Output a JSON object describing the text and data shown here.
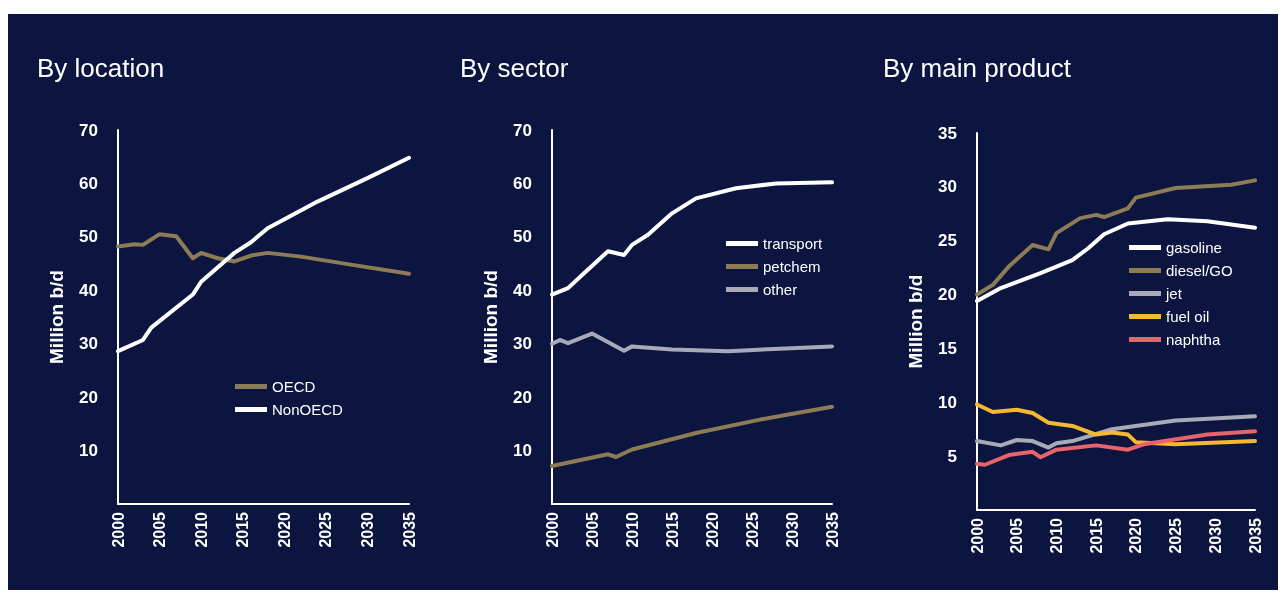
{
  "chart_data": [
    {
      "type": "line",
      "title": "By location",
      "ylabel": "Million b/d",
      "xlim": [
        2000,
        2035
      ],
      "xticks": [
        2000,
        2005,
        2010,
        2015,
        2020,
        2025,
        2030,
        2035
      ],
      "ylim": [
        0,
        70
      ],
      "yticks": [
        10,
        20,
        30,
        40,
        50,
        60,
        70
      ],
      "grid": false,
      "legend": "bottom right",
      "marker": "none",
      "line_style": "solid",
      "series": [
        {
          "name": "OECD",
          "color": "#8c7b55",
          "x": [
            2000,
            2002,
            2003,
            2005,
            2007,
            2009,
            2010,
            2012,
            2014,
            2016,
            2018,
            2022,
            2028,
            2035
          ],
          "values": [
            48.2,
            48.6,
            48.5,
            50.5,
            50.1,
            46,
            47,
            46,
            45.4,
            46.5,
            47,
            46.3,
            44.8,
            43.1
          ]
        },
        {
          "name": "NonOECD",
          "color": "#ffffff",
          "x": [
            2000,
            2003,
            2004,
            2009,
            2010,
            2014,
            2016,
            2018,
            2024,
            2030,
            2035
          ],
          "values": [
            28.6,
            30.7,
            33,
            39.2,
            41.6,
            47,
            49,
            51.6,
            56.6,
            61,
            64.8
          ]
        }
      ]
    },
    {
      "type": "line",
      "title": "By sector",
      "ylabel": "Million b/d",
      "xlim": [
        2000,
        2035
      ],
      "xticks": [
        2000,
        2005,
        2010,
        2015,
        2020,
        2025,
        2030,
        2035
      ],
      "ylim": [
        0,
        70
      ],
      "yticks": [
        10,
        20,
        30,
        40,
        50,
        60,
        70
      ],
      "grid": false,
      "legend": "right",
      "marker": "none",
      "line_style": "solid",
      "series": [
        {
          "name": "transport",
          "color": "#ffffff",
          "x": [
            2000,
            2002,
            2004,
            2007,
            2009,
            2010,
            2012,
            2015,
            2018,
            2023,
            2028,
            2035
          ],
          "values": [
            39.2,
            40.4,
            43.2,
            47.3,
            46.6,
            48.5,
            50.4,
            54.4,
            57.2,
            59.1,
            60,
            60.2
          ]
        },
        {
          "name": "petchem",
          "color": "#8c7b55",
          "x": [
            2000,
            2007,
            2008,
            2010,
            2018,
            2026,
            2035
          ],
          "values": [
            7.1,
            9.3,
            8.8,
            10.2,
            13.3,
            15.8,
            18.2
          ]
        },
        {
          "name": "other",
          "color": "#a9aab8",
          "x": [
            2000,
            2001,
            2002,
            2005,
            2009,
            2010,
            2015,
            2022,
            2035
          ],
          "values": [
            30,
            30.7,
            30.1,
            31.9,
            28.7,
            29.5,
            28.9,
            28.6,
            29.5
          ]
        }
      ]
    },
    {
      "type": "line",
      "title": "By main product",
      "ylabel": "Million b/d",
      "xlim": [
        2000,
        2035
      ],
      "xticks": [
        2000,
        2005,
        2010,
        2015,
        2020,
        2025,
        2030,
        2035
      ],
      "ylim": [
        0,
        35
      ],
      "yticks": [
        5,
        10,
        15,
        20,
        25,
        30,
        35
      ],
      "grid": false,
      "legend": "right",
      "marker": "none",
      "line_style": "solid",
      "series": [
        {
          "name": "gasoline",
          "color": "#ffffff",
          "x": [
            2000,
            2003,
            2008,
            2010,
            2012,
            2014,
            2016,
            2019,
            2024,
            2029,
            2035
          ],
          "values": [
            19.4,
            20.6,
            22,
            22.6,
            23.2,
            24.3,
            25.6,
            26.6,
            27,
            26.8,
            26.2
          ]
        },
        {
          "name": "diesel/GO",
          "color": "#8c7b55",
          "x": [
            2000,
            2002,
            2004,
            2007,
            2009,
            2010,
            2013,
            2015,
            2016,
            2019,
            2020,
            2025,
            2032,
            2035
          ],
          "values": [
            20,
            20.9,
            22.6,
            24.6,
            24.2,
            25.7,
            27.1,
            27.4,
            27.2,
            28,
            29,
            29.9,
            30.2,
            30.6
          ]
        },
        {
          "name": "jet",
          "color": "#a9aab8",
          "x": [
            2000,
            2003,
            2005,
            2007,
            2009,
            2010,
            2012,
            2017,
            2025,
            2035
          ],
          "values": [
            6.4,
            6,
            6.5,
            6.4,
            5.8,
            6.2,
            6.4,
            7.5,
            8.3,
            8.7
          ]
        },
        {
          "name": "fuel oil",
          "color": "#f5b82e",
          "x": [
            2000,
            2002,
            2005,
            2007,
            2009,
            2012,
            2015,
            2017,
            2019,
            2020,
            2025,
            2035
          ],
          "values": [
            9.8,
            9.1,
            9.3,
            9,
            8.1,
            7.8,
            7,
            7.2,
            7,
            6.3,
            6.1,
            6.4
          ]
        },
        {
          "name": "naphtha",
          "color": "#e8646a",
          "x": [
            2000,
            2001,
            2004,
            2007,
            2008,
            2010,
            2015,
            2019,
            2021,
            2029,
            2035
          ],
          "values": [
            4.3,
            4.2,
            5.1,
            5.4,
            4.9,
            5.6,
            6,
            5.6,
            6.1,
            7,
            7.3
          ]
        }
      ]
    }
  ]
}
